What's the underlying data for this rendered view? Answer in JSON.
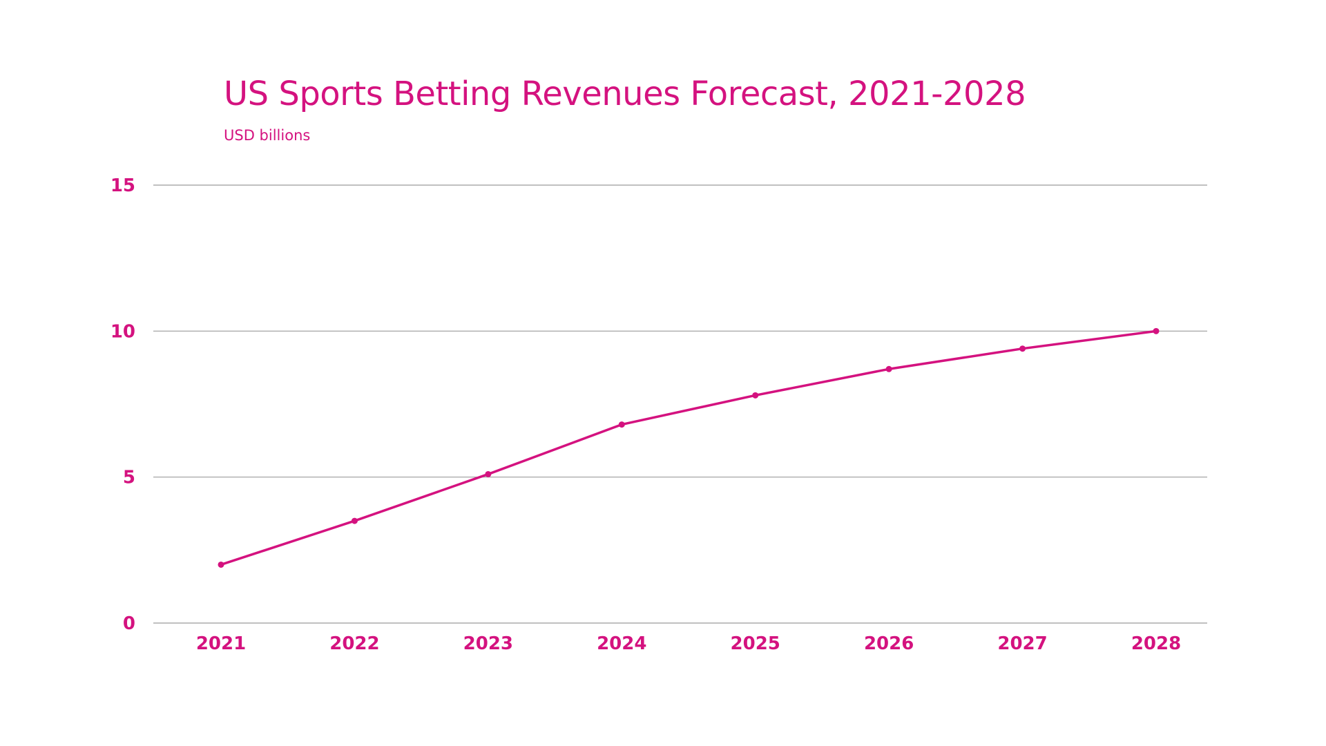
{
  "colors": {
    "accent": "#d4127f",
    "grid": "#9a9a9a",
    "background": "#ffffff"
  },
  "chart_data": {
    "type": "line",
    "title": "US Sports Betting Revenues Forecast, 2021-2028",
    "subtitle": "USD billions",
    "xlabel": "",
    "ylabel": "",
    "categories": [
      "2021",
      "2022",
      "2023",
      "2024",
      "2025",
      "2026",
      "2027",
      "2028"
    ],
    "series": [
      {
        "values": [
          2.0,
          3.5,
          5.1,
          6.8,
          7.8,
          8.7,
          9.4,
          10.0
        ]
      }
    ],
    "ylim": [
      0,
      15
    ],
    "yticks": [
      "0",
      "5",
      "10",
      "15"
    ],
    "grid": true,
    "legend": "none"
  }
}
